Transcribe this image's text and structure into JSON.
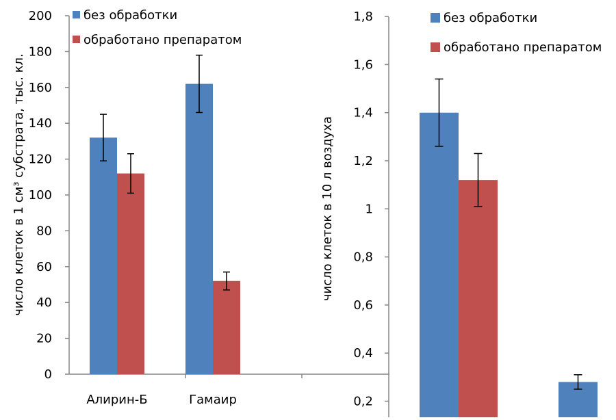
{
  "colors": {
    "series1": "#4F81BD",
    "series2": "#C0504D",
    "axis": "#868686"
  },
  "chart_data": [
    {
      "type": "bar",
      "categories": [
        "Алирин-Б",
        "Гамаир"
      ],
      "ylabel": "число клеток в 1 см³ субстрата, тыс. кл.",
      "ylim": [
        0,
        200
      ],
      "yticks": [
        "0",
        "20",
        "40",
        "60",
        "80",
        "100",
        "120",
        "140",
        "160",
        "180",
        "200"
      ],
      "legend_position": "top-right",
      "grid": false,
      "series": [
        {
          "name": "без обработки",
          "values": [
            132,
            162
          ],
          "errors": [
            13,
            16
          ]
        },
        {
          "name": "обработано препаратом",
          "values": [
            112,
            52
          ],
          "errors": [
            11,
            5
          ]
        }
      ]
    },
    {
      "type": "bar",
      "categories": [
        "",
        ""
      ],
      "ylabel": "число клеток в 10 л воздуха",
      "ylim_visible": [
        0.2,
        1.8
      ],
      "yticks": [
        "0,2",
        "0,4",
        "0,6",
        "0,8",
        "1",
        "1,2",
        "1,4",
        "1,6",
        "1,8"
      ],
      "legend_position": "top-right",
      "grid": false,
      "series": [
        {
          "name": "без обработки",
          "values": [
            1.4,
            0.28
          ],
          "errors": [
            0.14,
            0.03
          ]
        },
        {
          "name": "обработано препаратом",
          "values": [
            1.12,
            null
          ],
          "errors": [
            0.11,
            null
          ]
        }
      ]
    }
  ]
}
